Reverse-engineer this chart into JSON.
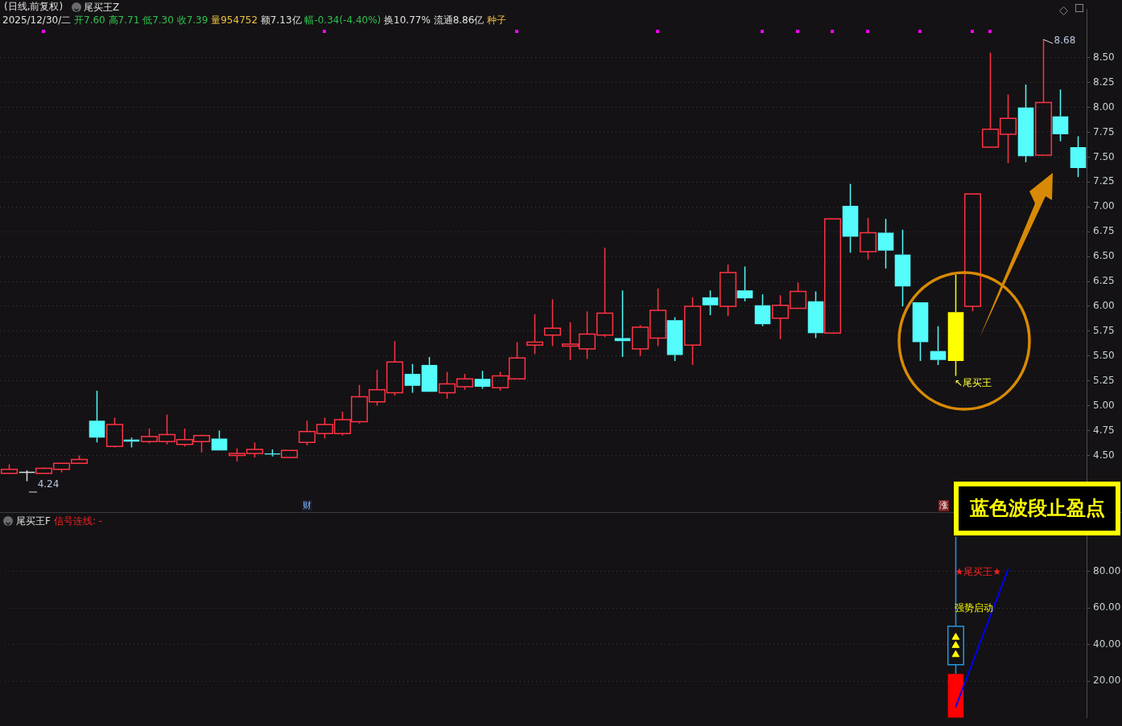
{
  "chart_data": [
    {
      "type": "candlestick",
      "title": "(日线,前复权)",
      "subtitle": "2025/12/30/二 开7.60 高7.71 低7.30 收7.39 量954752 额7.13亿 幅-0.34(-4.40%) 换10.77% 流通8.86亿 种子",
      "categories": [
        null,
        null,
        null,
        null,
        null,
        null,
        null,
        null,
        null,
        null,
        null,
        null,
        null,
        null,
        null,
        null,
        null,
        null,
        null,
        null,
        null,
        null,
        null,
        null,
        null,
        null,
        null,
        null,
        null,
        null,
        null,
        null,
        null,
        null,
        null,
        null,
        null,
        null,
        null,
        null,
        null,
        null,
        null,
        null,
        null,
        null,
        null,
        null,
        null,
        null,
        null,
        null,
        null,
        null,
        null,
        null,
        null,
        null,
        null,
        null,
        null,
        null
      ],
      "ohlc": [
        [
          4.32,
          4.41,
          4.32,
          4.36
        ],
        [
          4.33,
          4.35,
          4.24,
          4.33
        ],
        [
          4.32,
          4.38,
          4.32,
          4.37
        ],
        [
          4.36,
          4.42,
          4.33,
          4.42
        ],
        [
          4.42,
          4.5,
          4.42,
          4.46
        ],
        [
          4.85,
          5.15,
          4.63,
          4.68
        ],
        [
          4.59,
          4.88,
          4.58,
          4.81
        ],
        [
          4.66,
          4.68,
          4.58,
          4.64
        ],
        [
          4.64,
          4.77,
          4.62,
          4.69
        ],
        [
          4.64,
          4.91,
          4.61,
          4.71
        ],
        [
          4.61,
          4.77,
          4.59,
          4.66
        ],
        [
          4.64,
          4.71,
          4.53,
          4.7
        ],
        [
          4.67,
          4.75,
          4.55,
          4.55
        ],
        [
          4.5,
          4.57,
          4.44,
          4.52
        ],
        [
          4.52,
          4.63,
          4.48,
          4.56
        ],
        [
          4.52,
          4.56,
          4.49,
          4.51
        ],
        [
          4.48,
          4.55,
          4.48,
          4.55
        ],
        [
          4.63,
          4.85,
          4.6,
          4.74
        ],
        [
          4.72,
          4.88,
          4.67,
          4.81
        ],
        [
          4.72,
          4.94,
          4.7,
          4.86
        ],
        [
          4.84,
          5.21,
          4.82,
          5.09
        ],
        [
          5.04,
          5.36,
          5.0,
          5.16
        ],
        [
          5.13,
          5.65,
          5.1,
          5.44
        ],
        [
          5.32,
          5.42,
          5.13,
          5.2
        ],
        [
          5.41,
          5.49,
          5.14,
          5.14
        ],
        [
          5.13,
          5.34,
          5.07,
          5.22
        ],
        [
          5.19,
          5.32,
          5.16,
          5.27
        ],
        [
          5.27,
          5.35,
          5.17,
          5.19
        ],
        [
          5.18,
          5.34,
          5.15,
          5.3
        ],
        [
          5.27,
          5.64,
          5.27,
          5.48
        ],
        [
          5.61,
          5.92,
          5.52,
          5.64
        ],
        [
          5.71,
          6.07,
          5.6,
          5.78
        ],
        [
          5.6,
          5.84,
          5.46,
          5.62
        ],
        [
          5.57,
          5.95,
          5.47,
          5.72
        ],
        [
          5.71,
          6.59,
          5.69,
          5.93
        ],
        [
          5.68,
          6.16,
          5.49,
          5.65
        ],
        [
          5.57,
          5.81,
          5.5,
          5.79
        ],
        [
          5.68,
          6.18,
          5.6,
          5.96
        ],
        [
          5.86,
          5.89,
          5.45,
          5.51
        ],
        [
          5.61,
          6.09,
          5.41,
          6.0
        ],
        [
          6.09,
          6.16,
          5.91,
          6.01
        ],
        [
          6.0,
          6.42,
          5.9,
          6.34
        ],
        [
          6.16,
          6.4,
          6.05,
          6.08
        ],
        [
          6.01,
          6.12,
          5.8,
          5.82
        ],
        [
          5.88,
          6.11,
          5.67,
          6.01
        ],
        [
          5.98,
          6.24,
          5.98,
          6.15
        ],
        [
          6.05,
          6.15,
          5.68,
          5.73
        ],
        [
          5.73,
          6.88,
          5.73,
          6.88
        ],
        [
          7.01,
          7.23,
          6.54,
          6.7
        ],
        [
          6.55,
          6.89,
          6.47,
          6.74
        ],
        [
          6.74,
          6.88,
          6.38,
          6.56
        ],
        [
          6.52,
          6.77,
          6.0,
          6.2
        ],
        [
          6.04,
          6.04,
          5.45,
          5.64
        ],
        [
          5.55,
          5.8,
          5.41,
          5.46
        ],
        [
          5.45,
          6.32,
          5.3,
          5.94
        ],
        [
          6.0,
          7.13,
          5.95,
          7.13
        ],
        [
          7.6,
          8.55,
          7.6,
          7.78
        ],
        [
          7.73,
          8.13,
          7.44,
          7.89
        ],
        [
          8.0,
          8.23,
          7.45,
          7.51
        ],
        [
          7.52,
          8.68,
          7.52,
          8.05
        ],
        [
          7.91,
          8.18,
          7.66,
          7.73
        ],
        [
          7.6,
          7.71,
          7.3,
          7.39
        ]
      ],
      "colors": [
        "#ff3344",
        "#dddddd",
        "#ff3344",
        "#ff3344",
        "#ff3344",
        "#54fcfc",
        "#ff3344",
        "#54fcfc",
        "#ff3344",
        "#ff3344",
        "#ff3344",
        "#ff3344",
        "#54fcfc",
        "#ff3344",
        "#ff3344",
        "#54fcfc",
        "#ff3344",
        "#ff3344",
        "#ff3344",
        "#ff3344",
        "#ff3344",
        "#ff3344",
        "#ff3344",
        "#54fcfc",
        "#54fcfc",
        "#ff3344",
        "#ff3344",
        "#54fcfc",
        "#ff3344",
        "#ff3344",
        "#ff3344",
        "#ff3344",
        "#ff3344",
        "#ff3344",
        "#ff3344",
        "#54fcfc",
        "#ff3344",
        "#ff3344",
        "#54fcfc",
        "#ff3344",
        "#54fcfc",
        "#ff3344",
        "#54fcfc",
        "#54fcfc",
        "#ff3344",
        "#ff3344",
        "#54fcfc",
        "#ff3344",
        "#54fcfc",
        "#ff3344",
        "#54fcfc",
        "#54fcfc",
        "#54fcfc",
        "#54fcfc",
        "#ffff00",
        "#ff3344",
        "#ff3344",
        "#ff3344",
        "#54fcfc",
        "#ff3344",
        "#54fcfc",
        "#54fcfc"
      ],
      "ylim": [
        4.02,
        8.99
      ],
      "yticks": [
        {
          "value": 4.5,
          "label": "4.50"
        },
        {
          "value": 4.75,
          "label": "4.75"
        },
        {
          "value": 5,
          "label": "5.00"
        },
        {
          "value": 5.25,
          "label": "5.25"
        },
        {
          "value": 5.5,
          "label": "5.50"
        },
        {
          "value": 5.75,
          "label": "5.75"
        },
        {
          "value": 6,
          "label": "6.00"
        },
        {
          "value": 6.25,
          "label": "6.25"
        },
        {
          "value": 6.5,
          "label": "6.50"
        },
        {
          "value": 6.75,
          "label": "6.75"
        },
        {
          "value": 7,
          "label": "7.00"
        },
        {
          "value": 7.25,
          "label": "7.25"
        },
        {
          "value": 7.5,
          "label": "7.50"
        },
        {
          "value": 7.75,
          "label": "7.75"
        },
        {
          "value": 8,
          "label": "8.00"
        },
        {
          "value": 8.25,
          "label": "8.25"
        },
        {
          "value": 8.5,
          "label": "8.50"
        }
      ],
      "grid": "y",
      "annotations": [
        "4.24",
        "8.68",
        "尾买王Z",
        "↖尾买王",
        "财",
        "涨"
      ]
    },
    {
      "type": "candlestick",
      "title": "尾买王F",
      "subtitle": "信号连线: -",
      "categories": [
        null,
        null,
        null,
        null,
        null,
        null,
        null,
        null,
        null,
        null,
        null,
        null,
        null,
        null,
        null,
        null,
        null,
        null,
        null,
        null,
        null,
        null,
        null,
        null,
        null,
        null,
        null,
        null,
        null,
        null,
        null,
        null,
        null,
        null,
        null,
        null,
        null,
        null,
        null,
        null,
        null,
        null,
        null,
        null,
        null,
        null,
        null,
        null,
        null,
        null,
        null,
        null,
        null,
        null,
        null,
        null,
        null,
        null,
        null,
        null,
        null,
        null
      ],
      "ohlc": [
        null,
        null,
        null,
        null,
        null,
        null,
        null,
        null,
        null,
        null,
        null,
        null,
        null,
        null,
        null,
        null,
        null,
        null,
        null,
        null,
        null,
        null,
        null,
        null,
        null,
        null,
        null,
        null,
        null,
        null,
        null,
        null,
        null,
        null,
        null,
        null,
        null,
        null,
        null,
        null,
        null,
        null,
        null,
        null,
        null,
        null,
        null,
        null,
        null,
        null,
        null,
        null,
        null,
        null,
        [
          29,
          99,
          24,
          50
        ],
        null,
        null,
        null,
        null,
        null,
        null,
        null
      ],
      "color": "#1e9be0",
      "series": [
        {
          "type": "bar",
          "color": "#ff0000",
          "values": [
            null,
            null,
            null,
            null,
            null,
            null,
            null,
            null,
            null,
            null,
            null,
            null,
            null,
            null,
            null,
            null,
            null,
            null,
            null,
            null,
            null,
            null,
            null,
            null,
            null,
            null,
            null,
            null,
            null,
            null,
            null,
            null,
            null,
            null,
            null,
            null,
            null,
            null,
            null,
            null,
            null,
            null,
            null,
            null,
            null,
            null,
            null,
            null,
            null,
            null,
            null,
            null,
            null,
            null,
            24,
            null,
            null,
            null,
            null,
            null,
            null,
            null
          ]
        },
        {
          "type": "line",
          "color": "#0000ff",
          "values": [
            null,
            null,
            null,
            null,
            null,
            null,
            null,
            null,
            null,
            null,
            null,
            null,
            null,
            null,
            null,
            null,
            null,
            null,
            null,
            null,
            null,
            null,
            null,
            null,
            null,
            null,
            null,
            null,
            null,
            null,
            null,
            null,
            null,
            null,
            null,
            null,
            null,
            null,
            null,
            null,
            null,
            null,
            null,
            null,
            null,
            null,
            null,
            null,
            null,
            null,
            null,
            null,
            null,
            null,
            6,
            null,
            null,
            81,
            null,
            null,
            null,
            null
          ]
        },
        {
          "type": "scatter",
          "color": "#ffff00",
          "marker": "triangle",
          "values": [
            null,
            null,
            null,
            null,
            null,
            null,
            null,
            null,
            null,
            null,
            null,
            null,
            null,
            null,
            null,
            null,
            null,
            null,
            null,
            null,
            null,
            null,
            null,
            null,
            null,
            null,
            null,
            null,
            null,
            null,
            null,
            null,
            null,
            null,
            null,
            null,
            null,
            null,
            null,
            null,
            null,
            null,
            null,
            null,
            null,
            null,
            null,
            null,
            null,
            null,
            null,
            null,
            null,
            null,
            44,
            null,
            null,
            null,
            null,
            null,
            null,
            null
          ]
        },
        {
          "type": "scatter",
          "color": "#ffff00",
          "marker": "triangle",
          "values": [
            null,
            null,
            null,
            null,
            null,
            null,
            null,
            null,
            null,
            null,
            null,
            null,
            null,
            null,
            null,
            null,
            null,
            null,
            null,
            null,
            null,
            null,
            null,
            null,
            null,
            null,
            null,
            null,
            null,
            null,
            null,
            null,
            null,
            null,
            null,
            null,
            null,
            null,
            null,
            null,
            null,
            null,
            null,
            null,
            null,
            null,
            null,
            null,
            null,
            null,
            null,
            null,
            null,
            null,
            39.5,
            null,
            null,
            null,
            null,
            null,
            null,
            null
          ]
        },
        {
          "type": "scatter",
          "color": "#ffff00",
          "marker": "triangle",
          "values": [
            null,
            null,
            null,
            null,
            null,
            null,
            null,
            null,
            null,
            null,
            null,
            null,
            null,
            null,
            null,
            null,
            null,
            null,
            null,
            null,
            null,
            null,
            null,
            null,
            null,
            null,
            null,
            null,
            null,
            null,
            null,
            null,
            null,
            null,
            null,
            null,
            null,
            null,
            null,
            null,
            null,
            null,
            null,
            null,
            null,
            null,
            null,
            null,
            null,
            null,
            null,
            null,
            null,
            null,
            34.5,
            null,
            null,
            null,
            null,
            null,
            null,
            null
          ]
        }
      ],
      "ylim": [
        0,
        107
      ],
      "yticks": [
        {
          "value": 20,
          "label": "20.00"
        },
        {
          "value": 40,
          "label": "40.00"
        },
        {
          "value": 60,
          "label": "60.00"
        },
        {
          "value": 80,
          "label": "80.00"
        }
      ],
      "grid": "y",
      "annotations": [
        "★尾买王★",
        "强势启动",
        "蓝色波段止盈点"
      ]
    }
  ]
}
